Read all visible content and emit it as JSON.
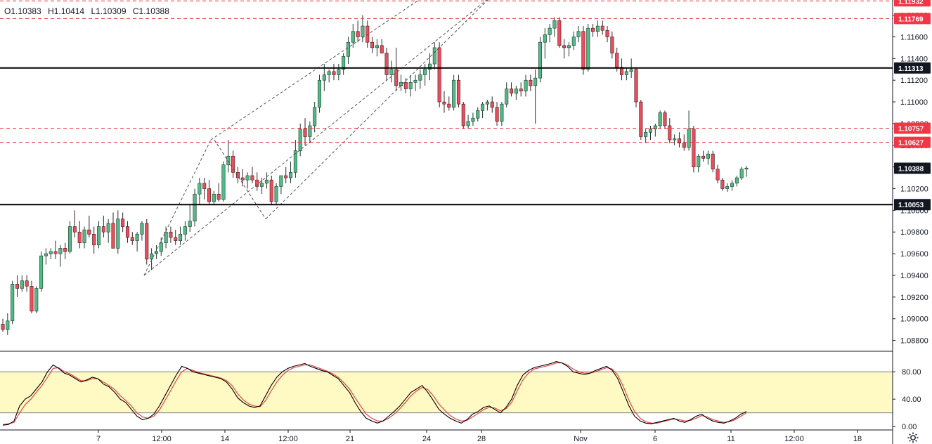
{
  "legend": {
    "open": "O1.10383",
    "high": "H1.10414",
    "low": "L1.10309",
    "close": "C1.10388"
  },
  "colors": {
    "up": "#53b987",
    "down": "#eb4d5c",
    "up_border": "#1f3b2d",
    "down_border": "#3b1f22",
    "red_line": "#e53935",
    "black_line": "#000000",
    "stoch_k": "#000000",
    "stoch_d": "#e53935",
    "band_fill": "#fff9c4",
    "tag_red": "#f23645",
    "tag_black": "#131722"
  },
  "price_axis": {
    "ticks": [
      "1.08800",
      "1.09000",
      "1.09200",
      "1.09400",
      "1.09600",
      "1.09800",
      "1.10000",
      "1.10200",
      "1.10400",
      "1.10600",
      "1.10800",
      "1.11000",
      "1.11200",
      "1.11400",
      "1.11600",
      "1.11800"
    ],
    "ylim": [
      1.087,
      1.1194
    ]
  },
  "levels": [
    {
      "value": 1.11932,
      "label": "1.11932",
      "style": "red-dashed"
    },
    {
      "value": 1.11769,
      "label": "1.11769",
      "style": "red-dashed"
    },
    {
      "value": 1.11313,
      "label": "1.11313",
      "style": "black-solid"
    },
    {
      "value": 1.10757,
      "label": "1.10757",
      "style": "red-dashed"
    },
    {
      "value": 1.10627,
      "label": "1.10627",
      "style": "red-dashed"
    },
    {
      "value": 1.10388,
      "label": "1.10388",
      "style": "current"
    },
    {
      "value": 1.10053,
      "label": "1.10053",
      "style": "black-solid"
    }
  ],
  "time_axis": [
    "7",
    "12:00",
    "14",
    "12:00",
    "21",
    "24",
    "28",
    "Nov",
    "6",
    "11",
    "12:00",
    "18"
  ],
  "stoch_axis": [
    "80.00",
    "40.00",
    "0.00"
  ],
  "chart_data": {
    "type": "candlestick",
    "series_ohlc": [
      [
        1.0895,
        1.09,
        1.0888,
        1.089
      ],
      [
        1.089,
        1.0905,
        1.0885,
        1.0898
      ],
      [
        1.0898,
        1.0935,
        1.0895,
        1.0932
      ],
      [
        1.0932,
        1.094,
        1.092,
        1.0928
      ],
      [
        1.0928,
        1.094,
        1.0925,
        1.0935
      ],
      [
        1.0935,
        1.094,
        1.0925,
        1.093
      ],
      [
        1.093,
        1.0935,
        1.0905,
        1.0907
      ],
      [
        1.0907,
        1.093,
        1.0905,
        1.0928
      ],
      [
        1.0928,
        1.0962,
        1.0925,
        1.0958
      ],
      [
        1.0958,
        1.0965,
        1.095,
        1.096
      ],
      [
        1.096,
        1.0965,
        1.0955,
        1.0962
      ],
      [
        1.0962,
        1.0972,
        1.0955,
        1.096
      ],
      [
        1.096,
        1.0968,
        1.0948,
        1.0965
      ],
      [
        1.0965,
        1.097,
        1.0955,
        1.0962
      ],
      [
        1.0962,
        1.099,
        1.096,
        1.0985
      ],
      [
        1.0985,
        1.1,
        1.0975,
        1.098
      ],
      [
        1.098,
        1.099,
        1.0965,
        1.097
      ],
      [
        1.097,
        1.0985,
        1.0965,
        1.0982
      ],
      [
        1.0982,
        1.0995,
        1.0975,
        1.0978
      ],
      [
        1.0978,
        1.0985,
        1.096,
        1.0968
      ],
      [
        1.0968,
        1.099,
        1.0965,
        1.0985
      ],
      [
        1.0985,
        1.0995,
        1.0975,
        1.098
      ],
      [
        1.098,
        1.0992,
        1.097,
        1.0988
      ],
      [
        1.0988,
        1.0998,
        1.0965,
        1.0965
      ],
      [
        1.0965,
        1.1,
        1.096,
        1.0992
      ],
      [
        1.0992,
        1.0998,
        1.098,
        1.0985
      ],
      [
        1.0985,
        1.099,
        1.097,
        1.0975
      ],
      [
        1.0975,
        1.098,
        1.0968,
        1.0972
      ],
      [
        1.0972,
        1.098,
        1.0962,
        1.0978
      ],
      [
        1.0978,
        1.099,
        1.0972,
        1.0988
      ],
      [
        1.0988,
        1.0992,
        1.095,
        1.0955
      ],
      [
        1.0955,
        1.0965,
        1.0945,
        1.096
      ],
      [
        1.096,
        1.0968,
        1.0955,
        1.0962
      ],
      [
        1.0962,
        1.0975,
        1.0958,
        1.097
      ],
      [
        1.097,
        1.0985,
        1.0965,
        1.098
      ],
      [
        1.098,
        1.0985,
        1.097,
        1.0975
      ],
      [
        1.0975,
        1.0982,
        1.0968,
        1.0972
      ],
      [
        1.0972,
        1.0985,
        1.0968,
        1.0978
      ],
      [
        1.0978,
        1.099,
        1.0972,
        1.0985
      ],
      [
        1.0985,
        1.1005,
        1.098,
        1.099
      ],
      [
        1.099,
        1.102,
        1.0985,
        1.1015
      ],
      [
        1.1015,
        1.103,
        1.1005,
        1.1025
      ],
      [
        1.1025,
        1.103,
        1.101,
        1.102
      ],
      [
        1.102,
        1.1028,
        1.1005,
        1.1008
      ],
      [
        1.1008,
        1.1018,
        1.1005,
        1.1015
      ],
      [
        1.1015,
        1.1025,
        1.1008,
        1.101
      ],
      [
        1.101,
        1.1045,
        1.1008,
        1.1042
      ],
      [
        1.1042,
        1.1065,
        1.1035,
        1.105
      ],
      [
        1.105,
        1.1055,
        1.103,
        1.1035
      ],
      [
        1.1035,
        1.104,
        1.1025,
        1.103
      ],
      [
        1.103,
        1.1038,
        1.1022,
        1.1028
      ],
      [
        1.1028,
        1.1035,
        1.102,
        1.1032
      ],
      [
        1.1032,
        1.104,
        1.1025,
        1.1028
      ],
      [
        1.1028,
        1.1035,
        1.1018,
        1.1022
      ],
      [
        1.1022,
        1.103,
        1.1015,
        1.1025
      ],
      [
        1.1025,
        1.1035,
        1.102,
        1.1028
      ],
      [
        1.1028,
        1.1032,
        1.1005,
        1.1008
      ],
      [
        1.1008,
        1.1025,
        1.1005,
        1.1022
      ],
      [
        1.1022,
        1.103,
        1.1015,
        1.1032
      ],
      [
        1.1032,
        1.104,
        1.1025,
        1.103
      ],
      [
        1.103,
        1.1045,
        1.1025,
        1.1035
      ],
      [
        1.1035,
        1.1065,
        1.103,
        1.1055
      ],
      [
        1.1055,
        1.108,
        1.105,
        1.1075
      ],
      [
        1.1075,
        1.1085,
        1.106,
        1.1068
      ],
      [
        1.1068,
        1.1082,
        1.1062,
        1.1078
      ],
      [
        1.1078,
        1.11,
        1.1072,
        1.1095
      ],
      [
        1.1095,
        1.1125,
        1.109,
        1.112
      ],
      [
        1.112,
        1.1135,
        1.111,
        1.1125
      ],
      [
        1.1125,
        1.113,
        1.1118,
        1.1128
      ],
      [
        1.1128,
        1.1135,
        1.112,
        1.1125
      ],
      [
        1.1125,
        1.1135,
        1.112,
        1.113
      ],
      [
        1.113,
        1.1145,
        1.1125,
        1.1142
      ],
      [
        1.1142,
        1.116,
        1.1135,
        1.1155
      ],
      [
        1.1155,
        1.1172,
        1.115,
        1.1165
      ],
      [
        1.1165,
        1.1175,
        1.1155,
        1.116
      ],
      [
        1.116,
        1.118,
        1.1155,
        1.117
      ],
      [
        1.117,
        1.1175,
        1.115,
        1.1155
      ],
      [
        1.1155,
        1.116,
        1.1145,
        1.115
      ],
      [
        1.115,
        1.1158,
        1.1142,
        1.1152
      ],
      [
        1.1152,
        1.1158,
        1.1145,
        1.1145
      ],
      [
        1.1145,
        1.115,
        1.112,
        1.1125
      ],
      [
        1.1125,
        1.1138,
        1.1118,
        1.113
      ],
      [
        1.113,
        1.115,
        1.111,
        1.1115
      ],
      [
        1.1115,
        1.1125,
        1.111,
        1.1118
      ],
      [
        1.1118,
        1.1122,
        1.1108,
        1.1112
      ],
      [
        1.1112,
        1.1125,
        1.1105,
        1.1118
      ],
      [
        1.1118,
        1.1125,
        1.111,
        1.112
      ],
      [
        1.112,
        1.113,
        1.1112,
        1.1125
      ],
      [
        1.1125,
        1.1135,
        1.1115,
        1.113
      ],
      [
        1.113,
        1.1145,
        1.112,
        1.1135
      ],
      [
        1.1135,
        1.1155,
        1.113,
        1.115
      ],
      [
        1.115,
        1.1155,
        1.1095,
        1.11
      ],
      [
        1.11,
        1.111,
        1.109,
        1.1098
      ],
      [
        1.1098,
        1.1105,
        1.1092,
        1.1095
      ],
      [
        1.1095,
        1.1125,
        1.1092,
        1.112
      ],
      [
        1.112,
        1.1125,
        1.1095,
        1.1098
      ],
      [
        1.1098,
        1.11,
        1.1075,
        1.1078
      ],
      [
        1.1078,
        1.1088,
        1.1075,
        1.1082
      ],
      [
        1.1082,
        1.109,
        1.1078,
        1.1085
      ],
      [
        1.1085,
        1.1095,
        1.1082,
        1.1092
      ],
      [
        1.1092,
        1.11,
        1.1085,
        1.1098
      ],
      [
        1.1098,
        1.1102,
        1.1092,
        1.11
      ],
      [
        1.11,
        1.1105,
        1.109,
        1.1095
      ],
      [
        1.1095,
        1.11,
        1.1078,
        1.1082
      ],
      [
        1.1082,
        1.11,
        1.1078,
        1.1098
      ],
      [
        1.1098,
        1.1118,
        1.1095,
        1.1112
      ],
      [
        1.1112,
        1.1118,
        1.1105,
        1.1108
      ],
      [
        1.1108,
        1.1115,
        1.1102,
        1.1112
      ],
      [
        1.1112,
        1.1118,
        1.1105,
        1.111
      ],
      [
        1.111,
        1.1125,
        1.1105,
        1.112
      ],
      [
        1.112,
        1.1125,
        1.111,
        1.1115
      ],
      [
        1.1115,
        1.113,
        1.108,
        1.1122
      ],
      [
        1.1122,
        1.116,
        1.1118,
        1.1155
      ],
      [
        1.1155,
        1.1168,
        1.114,
        1.1162
      ],
      [
        1.1162,
        1.1172,
        1.1155,
        1.1168
      ],
      [
        1.1168,
        1.1178,
        1.116,
        1.1175
      ],
      [
        1.1175,
        1.1178,
        1.115,
        1.1152
      ],
      [
        1.1152,
        1.1158,
        1.114,
        1.115
      ],
      [
        1.115,
        1.1155,
        1.1142,
        1.1152
      ],
      [
        1.1152,
        1.1165,
        1.1148,
        1.116
      ],
      [
        1.116,
        1.117,
        1.1155,
        1.1165
      ],
      [
        1.1165,
        1.117,
        1.1125,
        1.113
      ],
      [
        1.113,
        1.1172,
        1.1128,
        1.1168
      ],
      [
        1.1168,
        1.1172,
        1.116,
        1.1165
      ],
      [
        1.1165,
        1.1175,
        1.116,
        1.117
      ],
      [
        1.117,
        1.1175,
        1.1162,
        1.1166
      ],
      [
        1.1166,
        1.117,
        1.1155,
        1.116
      ],
      [
        1.116,
        1.1165,
        1.114,
        1.1145
      ],
      [
        1.1145,
        1.115,
        1.1128,
        1.1132
      ],
      [
        1.1132,
        1.114,
        1.112,
        1.1125
      ],
      [
        1.1125,
        1.1132,
        1.112,
        1.1128
      ],
      [
        1.1128,
        1.114,
        1.1122,
        1.113
      ],
      [
        1.113,
        1.1132,
        1.1095,
        1.11
      ],
      [
        1.11,
        1.1102,
        1.1065,
        1.1068
      ],
      [
        1.1068,
        1.1075,
        1.1062,
        1.1072
      ],
      [
        1.1072,
        1.1078,
        1.1065,
        1.1075
      ],
      [
        1.1075,
        1.108,
        1.1068,
        1.1078
      ],
      [
        1.1078,
        1.1092,
        1.1075,
        1.109
      ],
      [
        1.109,
        1.1092,
        1.1075,
        1.1078
      ],
      [
        1.1078,
        1.1085,
        1.1062,
        1.1065
      ],
      [
        1.1065,
        1.107,
        1.106,
        1.1066
      ],
      [
        1.1066,
        1.1072,
        1.1058,
        1.1062
      ],
      [
        1.1062,
        1.107,
        1.1055,
        1.1058
      ],
      [
        1.1058,
        1.1092,
        1.1055,
        1.1075
      ],
      [
        1.1075,
        1.1078,
        1.1035,
        1.104
      ],
      [
        1.104,
        1.1052,
        1.1035,
        1.105
      ],
      [
        1.105,
        1.1055,
        1.1045,
        1.1048
      ],
      [
        1.1048,
        1.1055,
        1.1042,
        1.1052
      ],
      [
        1.1052,
        1.1055,
        1.1035,
        1.1038
      ],
      [
        1.1038,
        1.1042,
        1.1025,
        1.1028
      ],
      [
        1.1028,
        1.103,
        1.1018,
        1.102
      ],
      [
        1.102,
        1.1025,
        1.1017,
        1.1022
      ],
      [
        1.1022,
        1.1028,
        1.1018,
        1.1025
      ],
      [
        1.1025,
        1.1032,
        1.1022,
        1.103
      ],
      [
        1.103,
        1.104,
        1.1028,
        1.1038
      ],
      [
        1.1038,
        1.1041,
        1.1031,
        1.1039
      ]
    ],
    "stoch_k": [
      2,
      3,
      8,
      30,
      40,
      45,
      55,
      65,
      80,
      90,
      85,
      78,
      75,
      70,
      65,
      68,
      72,
      70,
      62,
      58,
      50,
      40,
      35,
      25,
      15,
      10,
      12,
      18,
      30,
      45,
      60,
      75,
      88,
      85,
      80,
      78,
      76,
      74,
      72,
      70,
      65,
      55,
      42,
      35,
      30,
      28,
      30,
      45,
      60,
      72,
      80,
      85,
      88,
      90,
      92,
      88,
      85,
      82,
      80,
      75,
      70,
      60,
      50,
      35,
      22,
      12,
      8,
      5,
      8,
      15,
      22,
      30,
      40,
      50,
      55,
      60,
      50,
      38,
      25,
      18,
      12,
      8,
      5,
      10,
      18,
      22,
      28,
      30,
      25,
      20,
      28,
      40,
      60,
      75,
      82,
      86,
      88,
      90,
      92,
      95,
      93,
      88,
      80,
      78,
      76,
      78,
      82,
      85,
      88,
      82,
      70,
      50,
      30,
      15,
      8,
      5,
      4,
      6,
      8,
      10,
      12,
      8,
      6,
      10,
      15,
      18,
      12,
      8,
      6,
      5,
      8,
      12,
      18,
      22
    ],
    "stoch_d": [
      3,
      4,
      6,
      20,
      32,
      40,
      50,
      60,
      72,
      85,
      86,
      80,
      77,
      72,
      67,
      67,
      70,
      70,
      65,
      60,
      54,
      45,
      38,
      30,
      20,
      14,
      12,
      15,
      24,
      38,
      52,
      67,
      80,
      85,
      82,
      79,
      77,
      75,
      73,
      71,
      67,
      60,
      48,
      39,
      33,
      30,
      29,
      38,
      52,
      65,
      75,
      82,
      86,
      88,
      90,
      90,
      87,
      84,
      81,
      77,
      72,
      64,
      55,
      42,
      30,
      18,
      12,
      8,
      8,
      12,
      18,
      26,
      35,
      45,
      52,
      57,
      54,
      45,
      33,
      24,
      16,
      11,
      8,
      9,
      14,
      19,
      25,
      28,
      27,
      23,
      26,
      35,
      52,
      68,
      78,
      84,
      86,
      88,
      90,
      93,
      93,
      90,
      84,
      80,
      78,
      78,
      80,
      83,
      86,
      84,
      75,
      58,
      38,
      22,
      12,
      7,
      5,
      5,
      7,
      9,
      11,
      10,
      8,
      9,
      12,
      16,
      14,
      10,
      8,
      6,
      7,
      10,
      15,
      20
    ],
    "stoch_band": [
      20,
      80
    ],
    "stoch_ylim": [
      -5,
      110
    ]
  }
}
